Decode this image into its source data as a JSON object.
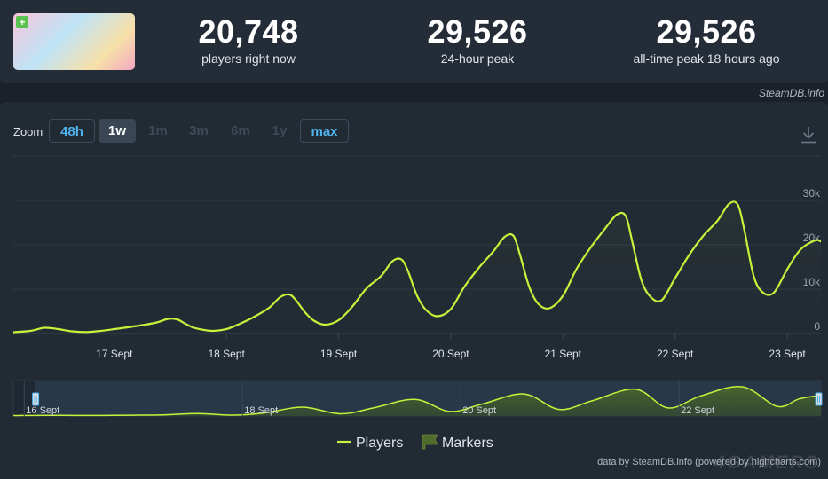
{
  "header": {
    "capsule_icon": "game-capsule-image",
    "stats": [
      {
        "value": "20,748",
        "label": "players right now"
      },
      {
        "value": "29,526",
        "label": "24-hour peak"
      },
      {
        "value": "29,526",
        "label": "all-time peak 18 hours ago"
      }
    ],
    "credit": "SteamDB.info"
  },
  "zoom": {
    "label": "Zoom",
    "buttons": [
      {
        "label": "48h",
        "state": "outlined"
      },
      {
        "label": "1w",
        "state": "selected"
      },
      {
        "label": "1m",
        "state": "disabled"
      },
      {
        "label": "3m",
        "state": "disabled"
      },
      {
        "label": "6m",
        "state": "disabled"
      },
      {
        "label": "1y",
        "state": "disabled"
      },
      {
        "label": "max",
        "state": "outlined"
      }
    ],
    "download_icon": "download-icon"
  },
  "chart_data": {
    "type": "line",
    "y_unit": "players",
    "ylim": [
      0,
      30000
    ],
    "yticks": [
      0,
      10000,
      20000,
      30000
    ],
    "ytick_labels": [
      "0",
      "10k",
      "20k",
      "30k"
    ],
    "xlim": [
      16.1,
      23.3
    ],
    "xticks": [
      17,
      18,
      19,
      20,
      21,
      22,
      23
    ],
    "xtick_labels": [
      "17 Sept",
      "18 Sept",
      "19 Sept",
      "20 Sept",
      "21 Sept",
      "22 Sept",
      "23 Sept"
    ],
    "grid": true,
    "legend": "bottom-center",
    "series": [
      {
        "name": "Players",
        "color": "#c5f23a",
        "x": [
          16.1,
          16.25,
          16.38,
          16.5,
          16.62,
          16.75,
          16.88,
          17.0,
          17.12,
          17.25,
          17.38,
          17.48,
          17.56,
          17.62,
          17.7,
          17.78,
          17.88,
          18.0,
          18.12,
          18.25,
          18.38,
          18.48,
          18.56,
          18.62,
          18.7,
          18.78,
          18.88,
          19.0,
          19.12,
          19.25,
          19.38,
          19.48,
          19.56,
          19.62,
          19.7,
          19.78,
          19.88,
          20.0,
          20.12,
          20.25,
          20.38,
          20.48,
          20.56,
          20.62,
          20.7,
          20.78,
          20.88,
          21.0,
          21.12,
          21.25,
          21.38,
          21.48,
          21.56,
          21.62,
          21.7,
          21.78,
          21.88,
          22.0,
          22.12,
          22.25,
          22.38,
          22.48,
          22.56,
          22.62,
          22.7,
          22.78,
          22.88,
          23.0,
          23.12,
          23.25,
          23.3
        ],
        "y": [
          300,
          600,
          1300,
          1000,
          500,
          350,
          600,
          1000,
          1400,
          1900,
          2500,
          3300,
          3200,
          2400,
          1400,
          900,
          600,
          1000,
          2200,
          3800,
          5800,
          8200,
          8800,
          7500,
          4800,
          2900,
          2000,
          3000,
          6000,
          10200,
          13000,
          16300,
          16700,
          14000,
          8500,
          5300,
          3900,
          5500,
          10500,
          14800,
          18500,
          21800,
          22000,
          17500,
          10500,
          6700,
          5700,
          8500,
          14500,
          19500,
          23800,
          26800,
          26500,
          20500,
          12000,
          8300,
          7500,
          12500,
          17500,
          22000,
          25500,
          29200,
          29000,
          23000,
          13000,
          9300,
          9200,
          14500,
          19000,
          21000,
          20748
        ]
      }
    ],
    "navigator": {
      "tick_labels": [
        "16 Sept",
        "18 Sept",
        "20 Sept",
        "22 Sept"
      ],
      "x": [
        15.9,
        16.2,
        16.6,
        17.0,
        17.3,
        17.6,
        17.9,
        18.2,
        18.55,
        18.9,
        19.2,
        19.58,
        19.9,
        20.2,
        20.58,
        20.9,
        21.2,
        21.6,
        21.9,
        22.2,
        22.58,
        22.9,
        23.1,
        23.3
      ],
      "y": [
        400,
        700,
        500,
        800,
        1200,
        2500,
        900,
        3000,
        8800,
        2200,
        8000,
        16500,
        4500,
        12000,
        22000,
        6500,
        15000,
        26700,
        8000,
        20000,
        29100,
        9500,
        17000,
        20748
      ]
    },
    "legend_entries": [
      {
        "name": "Players",
        "color": "#c5f23a",
        "symbol": "line"
      },
      {
        "name": "Markers",
        "color": "#4f6b2c",
        "symbol": "flag"
      }
    ]
  },
  "footer": {
    "credit": "data by SteamDB.info (powered by highcharts.com)",
    "watermark": "4GAMERS"
  }
}
